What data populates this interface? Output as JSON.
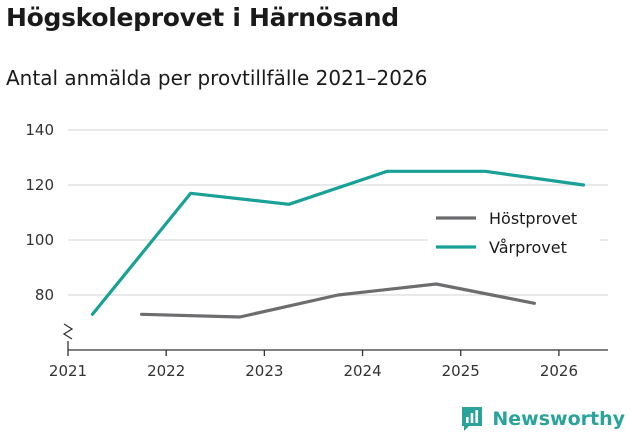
{
  "header": {
    "title": "Högskoleprovet i Härnösand",
    "subtitle": "Antal anmälda per provtillfälle 2021–2026"
  },
  "branding": {
    "name": "Newsworthy",
    "icon": "newsworthy-logo-icon",
    "color": "#2aa39a"
  },
  "chart_data": {
    "type": "line",
    "title": "Högskoleprovet i Härnösand",
    "subtitle": "Antal anmälda per provtillfälle 2021–2026",
    "xlabel": "",
    "ylabel": "",
    "xlim": [
      2021,
      2026.5
    ],
    "ylim": [
      60,
      140
    ],
    "x_ticks": [
      2021,
      2022,
      2023,
      2024,
      2025,
      2026
    ],
    "y_ticks": [
      80,
      100,
      120,
      140
    ],
    "y_axis_break": true,
    "grid": true,
    "legend_position": "right",
    "series": [
      {
        "name": "Höstprovet",
        "color": "#6d6d70",
        "points": [
          {
            "x": 2021.75,
            "y": 73
          },
          {
            "x": 2022.75,
            "y": 72
          },
          {
            "x": 2023.75,
            "y": 80
          },
          {
            "x": 2024.75,
            "y": 84
          },
          {
            "x": 2025.75,
            "y": 77
          }
        ]
      },
      {
        "name": "Vårprovet",
        "color": "#19a097",
        "points": [
          {
            "x": 2021.25,
            "y": 73
          },
          {
            "x": 2022.25,
            "y": 117
          },
          {
            "x": 2023.25,
            "y": 113
          },
          {
            "x": 2024.25,
            "y": 125
          },
          {
            "x": 2025.25,
            "y": 125
          },
          {
            "x": 2026.25,
            "y": 120
          }
        ]
      }
    ]
  }
}
